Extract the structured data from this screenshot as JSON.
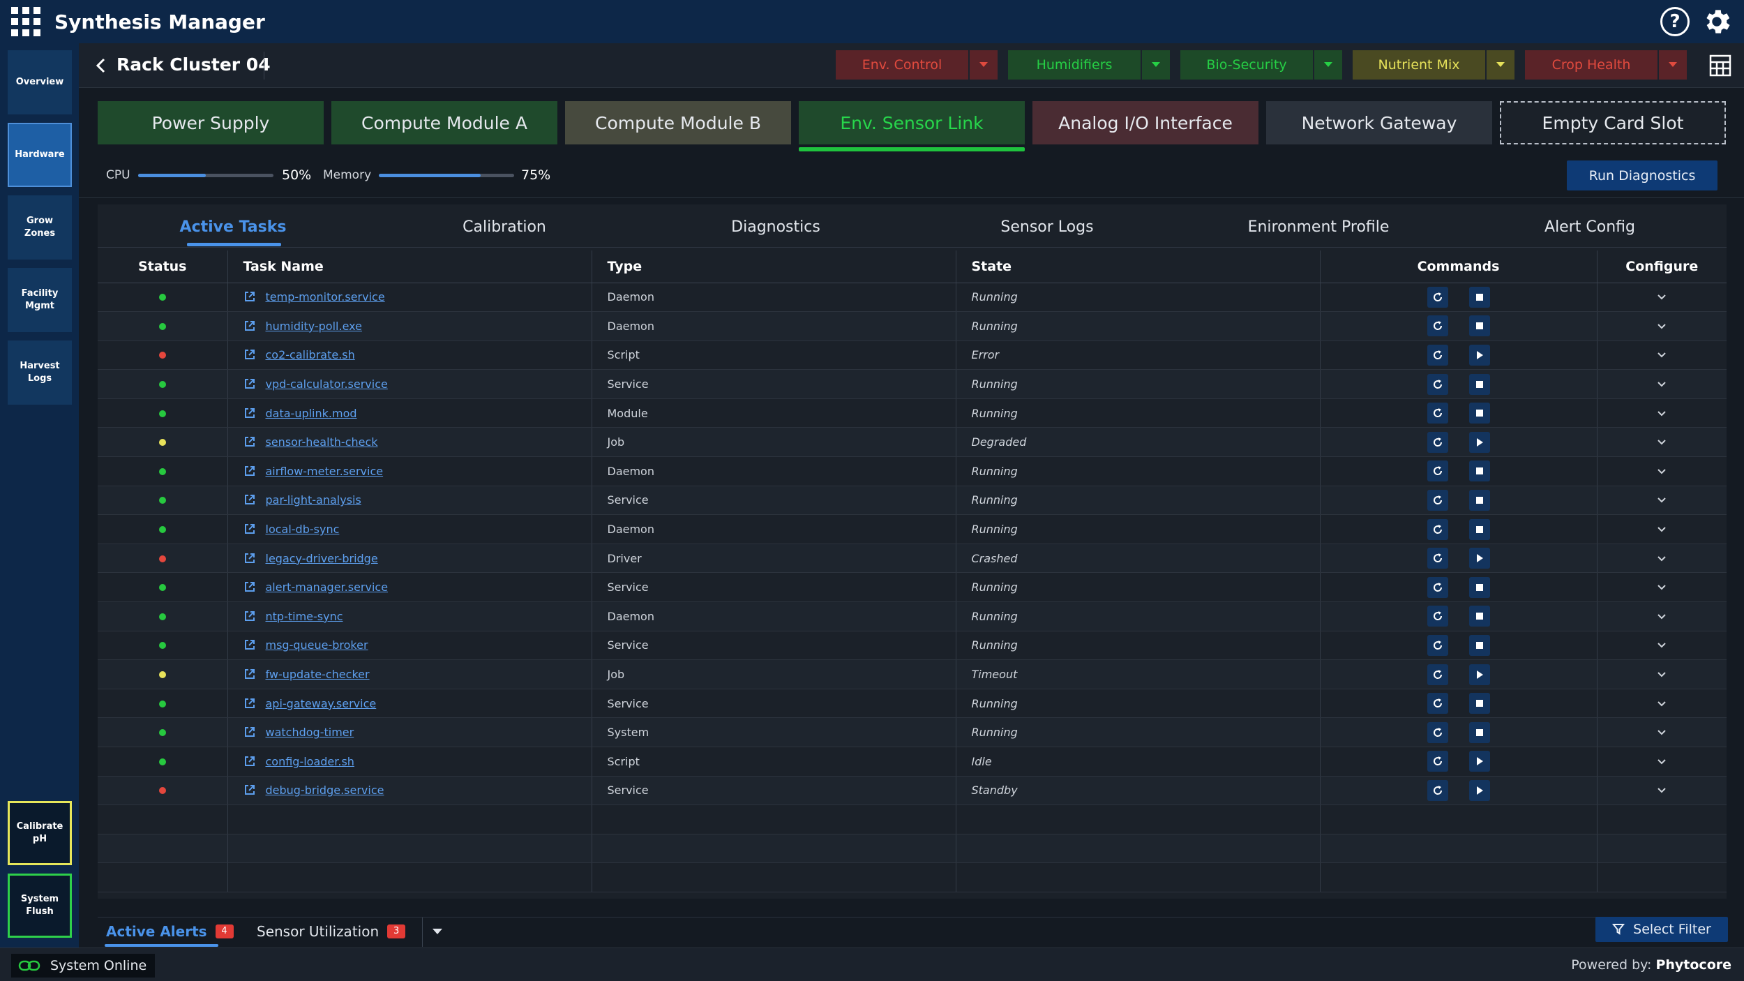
{
  "app": {
    "title": "Synthesis Manager"
  },
  "sidebar": {
    "items": [
      {
        "label": "Overview"
      },
      {
        "label": "Hardware"
      },
      {
        "label": "Grow Zones"
      },
      {
        "label": "Facility Mgmt"
      },
      {
        "label": "Harvest Logs"
      }
    ],
    "actions": [
      {
        "label": "Calibrate pH",
        "border": "#e6e65a"
      },
      {
        "label": "System Flush",
        "border": "#2ed04a"
      }
    ]
  },
  "header": {
    "back_title": "Rack Cluster 04",
    "controls": [
      {
        "label": "Env. Control",
        "text_color": "#e04a3e",
        "bg": "#5a2328"
      },
      {
        "label": "Humidifiers",
        "text_color": "#26cf45",
        "bg": "#1d4a28"
      },
      {
        "label": "Bio-Security",
        "text_color": "#26cf45",
        "bg": "#1d4a28"
      },
      {
        "label": "Nutrient Mix",
        "text_color": "#e6e25a",
        "bg": "#4a4a22"
      },
      {
        "label": "Crop Health",
        "text_color": "#e04a3e",
        "bg": "#5a2328"
      }
    ]
  },
  "modules": [
    {
      "label": "Power Supply",
      "bg": "#1f4a2c"
    },
    {
      "label": "Compute Module A",
      "bg": "#1f4a2c"
    },
    {
      "label": "Compute Module B",
      "bg": "#474a3e"
    },
    {
      "label": "Env. Sensor Link",
      "bg": "#1f4a2c"
    },
    {
      "label": "Analog I/O Interface",
      "bg": "#4a2c33"
    },
    {
      "label": "Network Gateway",
      "bg": "#2a313b"
    },
    {
      "label": "Empty Card Slot",
      "bg": "#1b2129"
    }
  ],
  "metrics": {
    "cpu_label": "CPU",
    "cpu_value": "50%",
    "cpu_fraction": 0.5,
    "memory_label": "Memory",
    "memory_value": "75%",
    "memory_fraction": 0.75
  },
  "run_diagnostics": "Run Diagnostics",
  "tabs": [
    "Active Tasks",
    "Calibration",
    "Diagnostics",
    "Sensor Logs",
    "Enironment Profile",
    "Alert Config"
  ],
  "table": {
    "columns": [
      "Status",
      "Task Name",
      "Type",
      "State",
      "Commands",
      "Configure"
    ],
    "rows": [
      {
        "status": "green",
        "name": "temp-monitor.service",
        "type": "Daemon",
        "state": "Running",
        "action": "stop"
      },
      {
        "status": "green",
        "name": "humidity-poll.exe",
        "type": "Daemon",
        "state": "Running",
        "action": "stop"
      },
      {
        "status": "red",
        "name": "co2-calibrate.sh",
        "type": "Script",
        "state": "Error",
        "action": "play"
      },
      {
        "status": "green",
        "name": "vpd-calculator.service",
        "type": "Service",
        "state": "Running",
        "action": "stop"
      },
      {
        "status": "green",
        "name": "data-uplink.mod",
        "type": "Module",
        "state": "Running",
        "action": "stop"
      },
      {
        "status": "yellow",
        "name": "sensor-health-check",
        "type": "Job",
        "state": "Degraded",
        "action": "play"
      },
      {
        "status": "green",
        "name": "airflow-meter.service",
        "type": "Daemon",
        "state": "Running",
        "action": "stop"
      },
      {
        "status": "green",
        "name": "par-light-analysis",
        "type": "Service",
        "state": "Running",
        "action": "stop"
      },
      {
        "status": "green",
        "name": "local-db-sync",
        "type": "Daemon",
        "state": "Running",
        "action": "stop"
      },
      {
        "status": "red",
        "name": "legacy-driver-bridge",
        "type": "Driver",
        "state": "Crashed",
        "action": "play"
      },
      {
        "status": "green",
        "name": "alert-manager.service",
        "type": "Service",
        "state": "Running",
        "action": "stop"
      },
      {
        "status": "green",
        "name": "ntp-time-sync",
        "type": "Daemon",
        "state": "Running",
        "action": "stop"
      },
      {
        "status": "green",
        "name": "msg-queue-broker",
        "type": "Service",
        "state": "Running",
        "action": "stop"
      },
      {
        "status": "yellow",
        "name": "fw-update-checker",
        "type": "Job",
        "state": "Timeout",
        "action": "play"
      },
      {
        "status": "green",
        "name": "api-gateway.service",
        "type": "Service",
        "state": "Running",
        "action": "stop"
      },
      {
        "status": "green",
        "name": "watchdog-timer",
        "type": "System",
        "state": "Running",
        "action": "stop"
      },
      {
        "status": "green",
        "name": "config-loader.sh",
        "type": "Script",
        "state": "Idle",
        "action": "play"
      },
      {
        "status": "red",
        "name": "debug-bridge.service",
        "type": "Service",
        "state": "Standby",
        "action": "play"
      }
    ]
  },
  "status_colors": {
    "green": "#27c93f",
    "red": "#e4473d",
    "yellow": "#e8e25a"
  },
  "bottom_tabs": [
    {
      "label": "Active Alerts",
      "badge": "4"
    },
    {
      "label": "Sensor Utilization",
      "badge": "3"
    }
  ],
  "select_filter": "Select Filter",
  "footer": {
    "status": "System Online",
    "powered_prefix": "Powered by:",
    "powered_brand": "Phytocore"
  }
}
